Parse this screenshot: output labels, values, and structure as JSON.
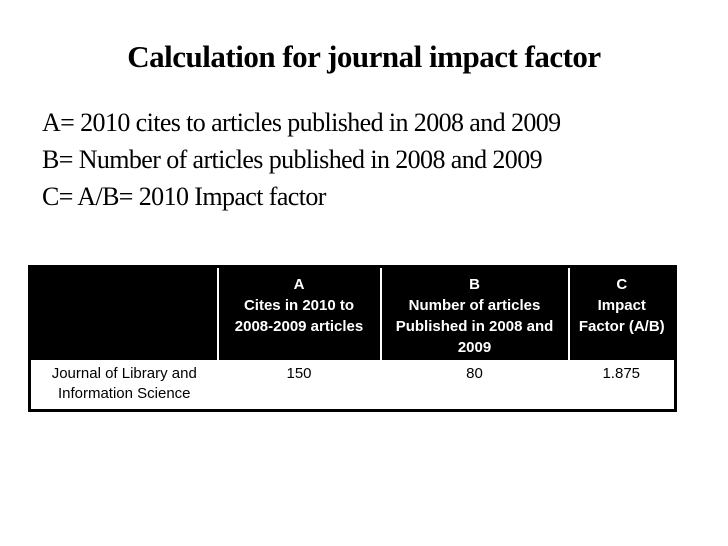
{
  "slide": {
    "title": "Calculation for journal impact factor",
    "definitions": [
      "A= 2010 cites to articles published in 2008 and 2009",
      "B= Number of articles published in 2008 and 2009",
      "C= A/B= 2010 Impact factor"
    ]
  },
  "table": {
    "header": {
      "journal": "",
      "col_a": "A\nCites in 2010 to\n2008-2009 articles",
      "col_b": "B\nNumber of articles\nPublished in 2008 and\n2009",
      "col_c": "C\nImpact\nFactor (A/B)"
    },
    "rows": [
      {
        "journal": "Journal of Library and Information Science",
        "cites_2010": "150",
        "articles_published": "80",
        "impact_factor": "1.875"
      }
    ]
  },
  "colors": {
    "slide_background": "#ffffff",
    "text": "#000000",
    "table_header_background": "#000000",
    "table_header_text": "#ffffff",
    "table_border": "#000000"
  }
}
